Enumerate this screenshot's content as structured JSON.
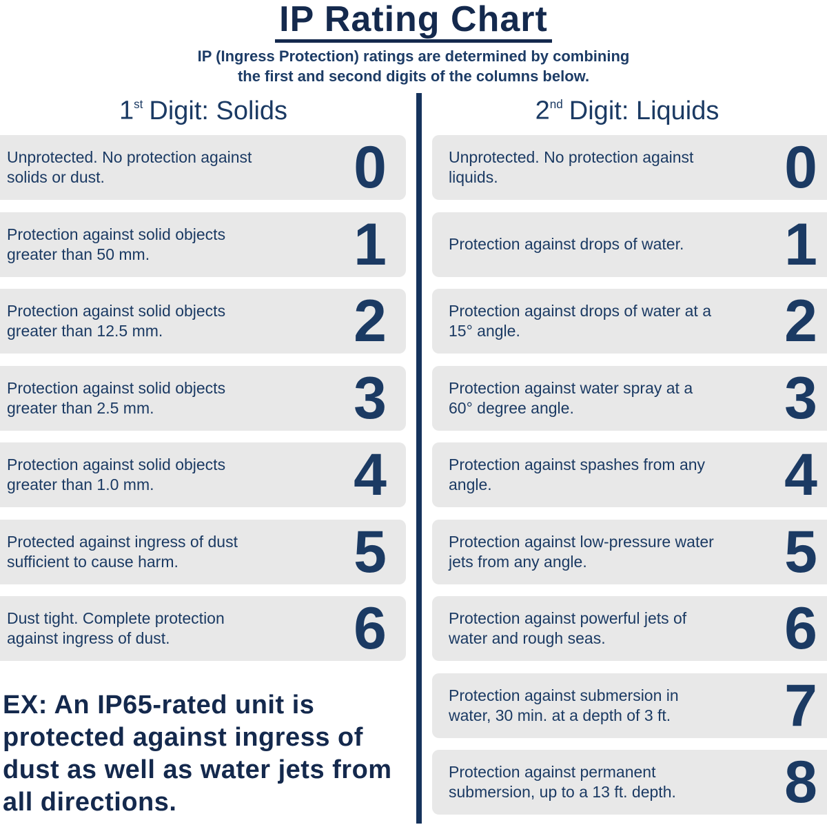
{
  "page": {
    "title": "IP Rating Chart",
    "subtitle_line1": "IP (Ingress Protection) ratings are determined by combining",
    "subtitle_line2": "the first and second digits of the columns below."
  },
  "colors": {
    "navy_text": "#1b3a63",
    "title_navy": "#14294d",
    "divider_navy": "#16335c",
    "row_background": "#e8e8e8"
  },
  "columns": [
    {
      "header": {
        "num": "1",
        "sup": "st",
        "rest": "Digit: Solids"
      },
      "rows": [
        {
          "digit": "0",
          "text": "Unprotected. No protection against solids or dust."
        },
        {
          "digit": "1",
          "text": "Protection against solid objects greater than 50 mm."
        },
        {
          "digit": "2",
          "text": "Protection against solid objects greater than 12.5 mm."
        },
        {
          "digit": "3",
          "text": "Protection against solid objects greater than 2.5 mm."
        },
        {
          "digit": "4",
          "text": "Protection against solid objects greater than 1.0 mm."
        },
        {
          "digit": "5",
          "text": "Protected against ingress of dust sufficient to cause harm."
        },
        {
          "digit": "6",
          "text": "Dust tight. Complete protection against ingress of dust."
        }
      ]
    },
    {
      "header": {
        "num": "2",
        "sup": "nd",
        "rest": "Digit: Liquids"
      },
      "rows": [
        {
          "digit": "0",
          "text": "Unprotected. No protection against liquids."
        },
        {
          "digit": "1",
          "text": "Protection against drops of water."
        },
        {
          "digit": "2",
          "text": "Protection against drops of water at a 15° angle."
        },
        {
          "digit": "3",
          "text": "Protection against water spray at a 60° degree angle."
        },
        {
          "digit": "4",
          "text": "Protection against spashes from any angle."
        },
        {
          "digit": "5",
          "text": "Protection against low-pressure water jets from any angle."
        },
        {
          "digit": "6",
          "text": "Protection against powerful jets of water and rough seas."
        },
        {
          "digit": "7",
          "text": "Protection against submersion in water, 30 min. at a depth of 3 ft."
        },
        {
          "digit": "8",
          "text": "Protection against permanent submersion, up to a 13 ft. depth."
        }
      ]
    }
  ],
  "example": {
    "text": "EX: An IP65-rated unit is protected against ingress of dust as well as water jets from all directions."
  }
}
